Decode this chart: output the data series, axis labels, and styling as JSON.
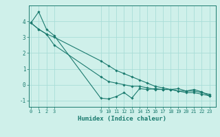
{
  "xlabel": "Humidex (Indice chaleur)",
  "bg_color": "#cff0ea",
  "line_color": "#1a7a6e",
  "grid_color": "#a8ddd8",
  "x_ticks": [
    0,
    1,
    2,
    3,
    9,
    10,
    11,
    12,
    13,
    14,
    15,
    16,
    17,
    18,
    19,
    20,
    21,
    22,
    23
  ],
  "y_ticks": [
    -1,
    0,
    1,
    2,
    3,
    4
  ],
  "ylim": [
    -1.4,
    5.0
  ],
  "xlim": [
    -0.3,
    23.8
  ],
  "series": [
    {
      "x": [
        0,
        1,
        2,
        3,
        9,
        10,
        11,
        12,
        13,
        14,
        15,
        16,
        17,
        18,
        19,
        20,
        21,
        22,
        23
      ],
      "y": [
        3.9,
        4.6,
        3.5,
        3.1,
        -0.85,
        -0.9,
        -0.75,
        -0.5,
        -0.85,
        -0.25,
        -0.3,
        -0.25,
        -0.3,
        -0.3,
        -0.25,
        -0.4,
        -0.3,
        -0.45,
        -0.7
      ]
    },
    {
      "x": [
        0,
        1,
        2,
        3,
        9,
        10,
        11,
        12,
        13,
        14,
        15,
        16,
        17,
        18,
        19,
        20,
        21,
        22,
        23
      ],
      "y": [
        3.9,
        3.5,
        3.2,
        2.5,
        0.5,
        0.2,
        0.1,
        0.0,
        -0.1,
        -0.1,
        -0.2,
        -0.3,
        -0.3,
        -0.3,
        -0.4,
        -0.4,
        -0.4,
        -0.5,
        -0.6
      ]
    },
    {
      "x": [
        0,
        1,
        2,
        3,
        9,
        10,
        11,
        12,
        13,
        14,
        15,
        16,
        17,
        18,
        19,
        20,
        21,
        22,
        23
      ],
      "y": [
        3.9,
        3.5,
        3.2,
        3.0,
        1.5,
        1.2,
        0.9,
        0.7,
        0.5,
        0.3,
        0.1,
        -0.1,
        -0.2,
        -0.3,
        -0.4,
        -0.5,
        -0.5,
        -0.6,
        -0.7
      ]
    }
  ]
}
